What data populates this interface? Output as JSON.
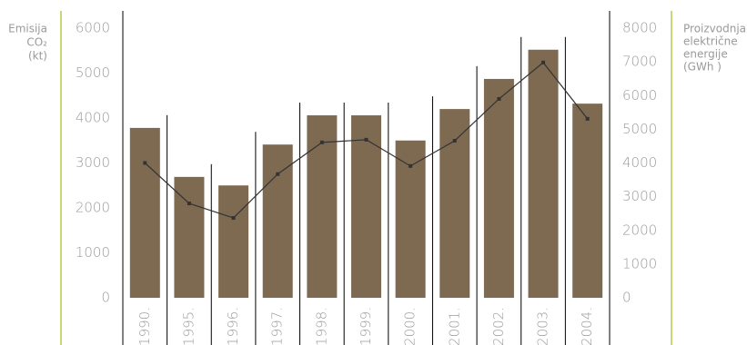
{
  "chart_data": {
    "type": "bar",
    "ylabel": [
      "Emisija",
      "CO₂",
      "(kt)"
    ],
    "y2label": [
      "Proizvodnja",
      "električne",
      "energije",
      "(GWh )"
    ],
    "categories": [
      "1990.",
      "1995.",
      "1996.",
      "1997.",
      "1998.",
      "1999.",
      "2000.",
      "2001.",
      "2002.",
      "2003.",
      "2004."
    ],
    "series": [
      {
        "type": "bar",
        "color": "#7d6a51",
        "values": [
          3780,
          2690,
          2500,
          3410,
          4060,
          4060,
          3500,
          4200,
          4870,
          5520,
          4320
        ]
      },
      {
        "type": "line",
        "axis": "y2",
        "color": "#333333",
        "values": [
          4000,
          2800,
          2370,
          3670,
          4610,
          4690,
          3910,
          4660,
          5900,
          6980,
          5310
        ]
      }
    ],
    "ylim": [
      0,
      6000
    ],
    "yticks": [
      0,
      1000,
      2000,
      3000,
      4000,
      5000,
      6000
    ],
    "y2lim": [
      0,
      8000
    ],
    "y2ticks": [
      0,
      1000,
      2000,
      3000,
      4000,
      5000,
      6000,
      7000,
      8000
    ]
  }
}
